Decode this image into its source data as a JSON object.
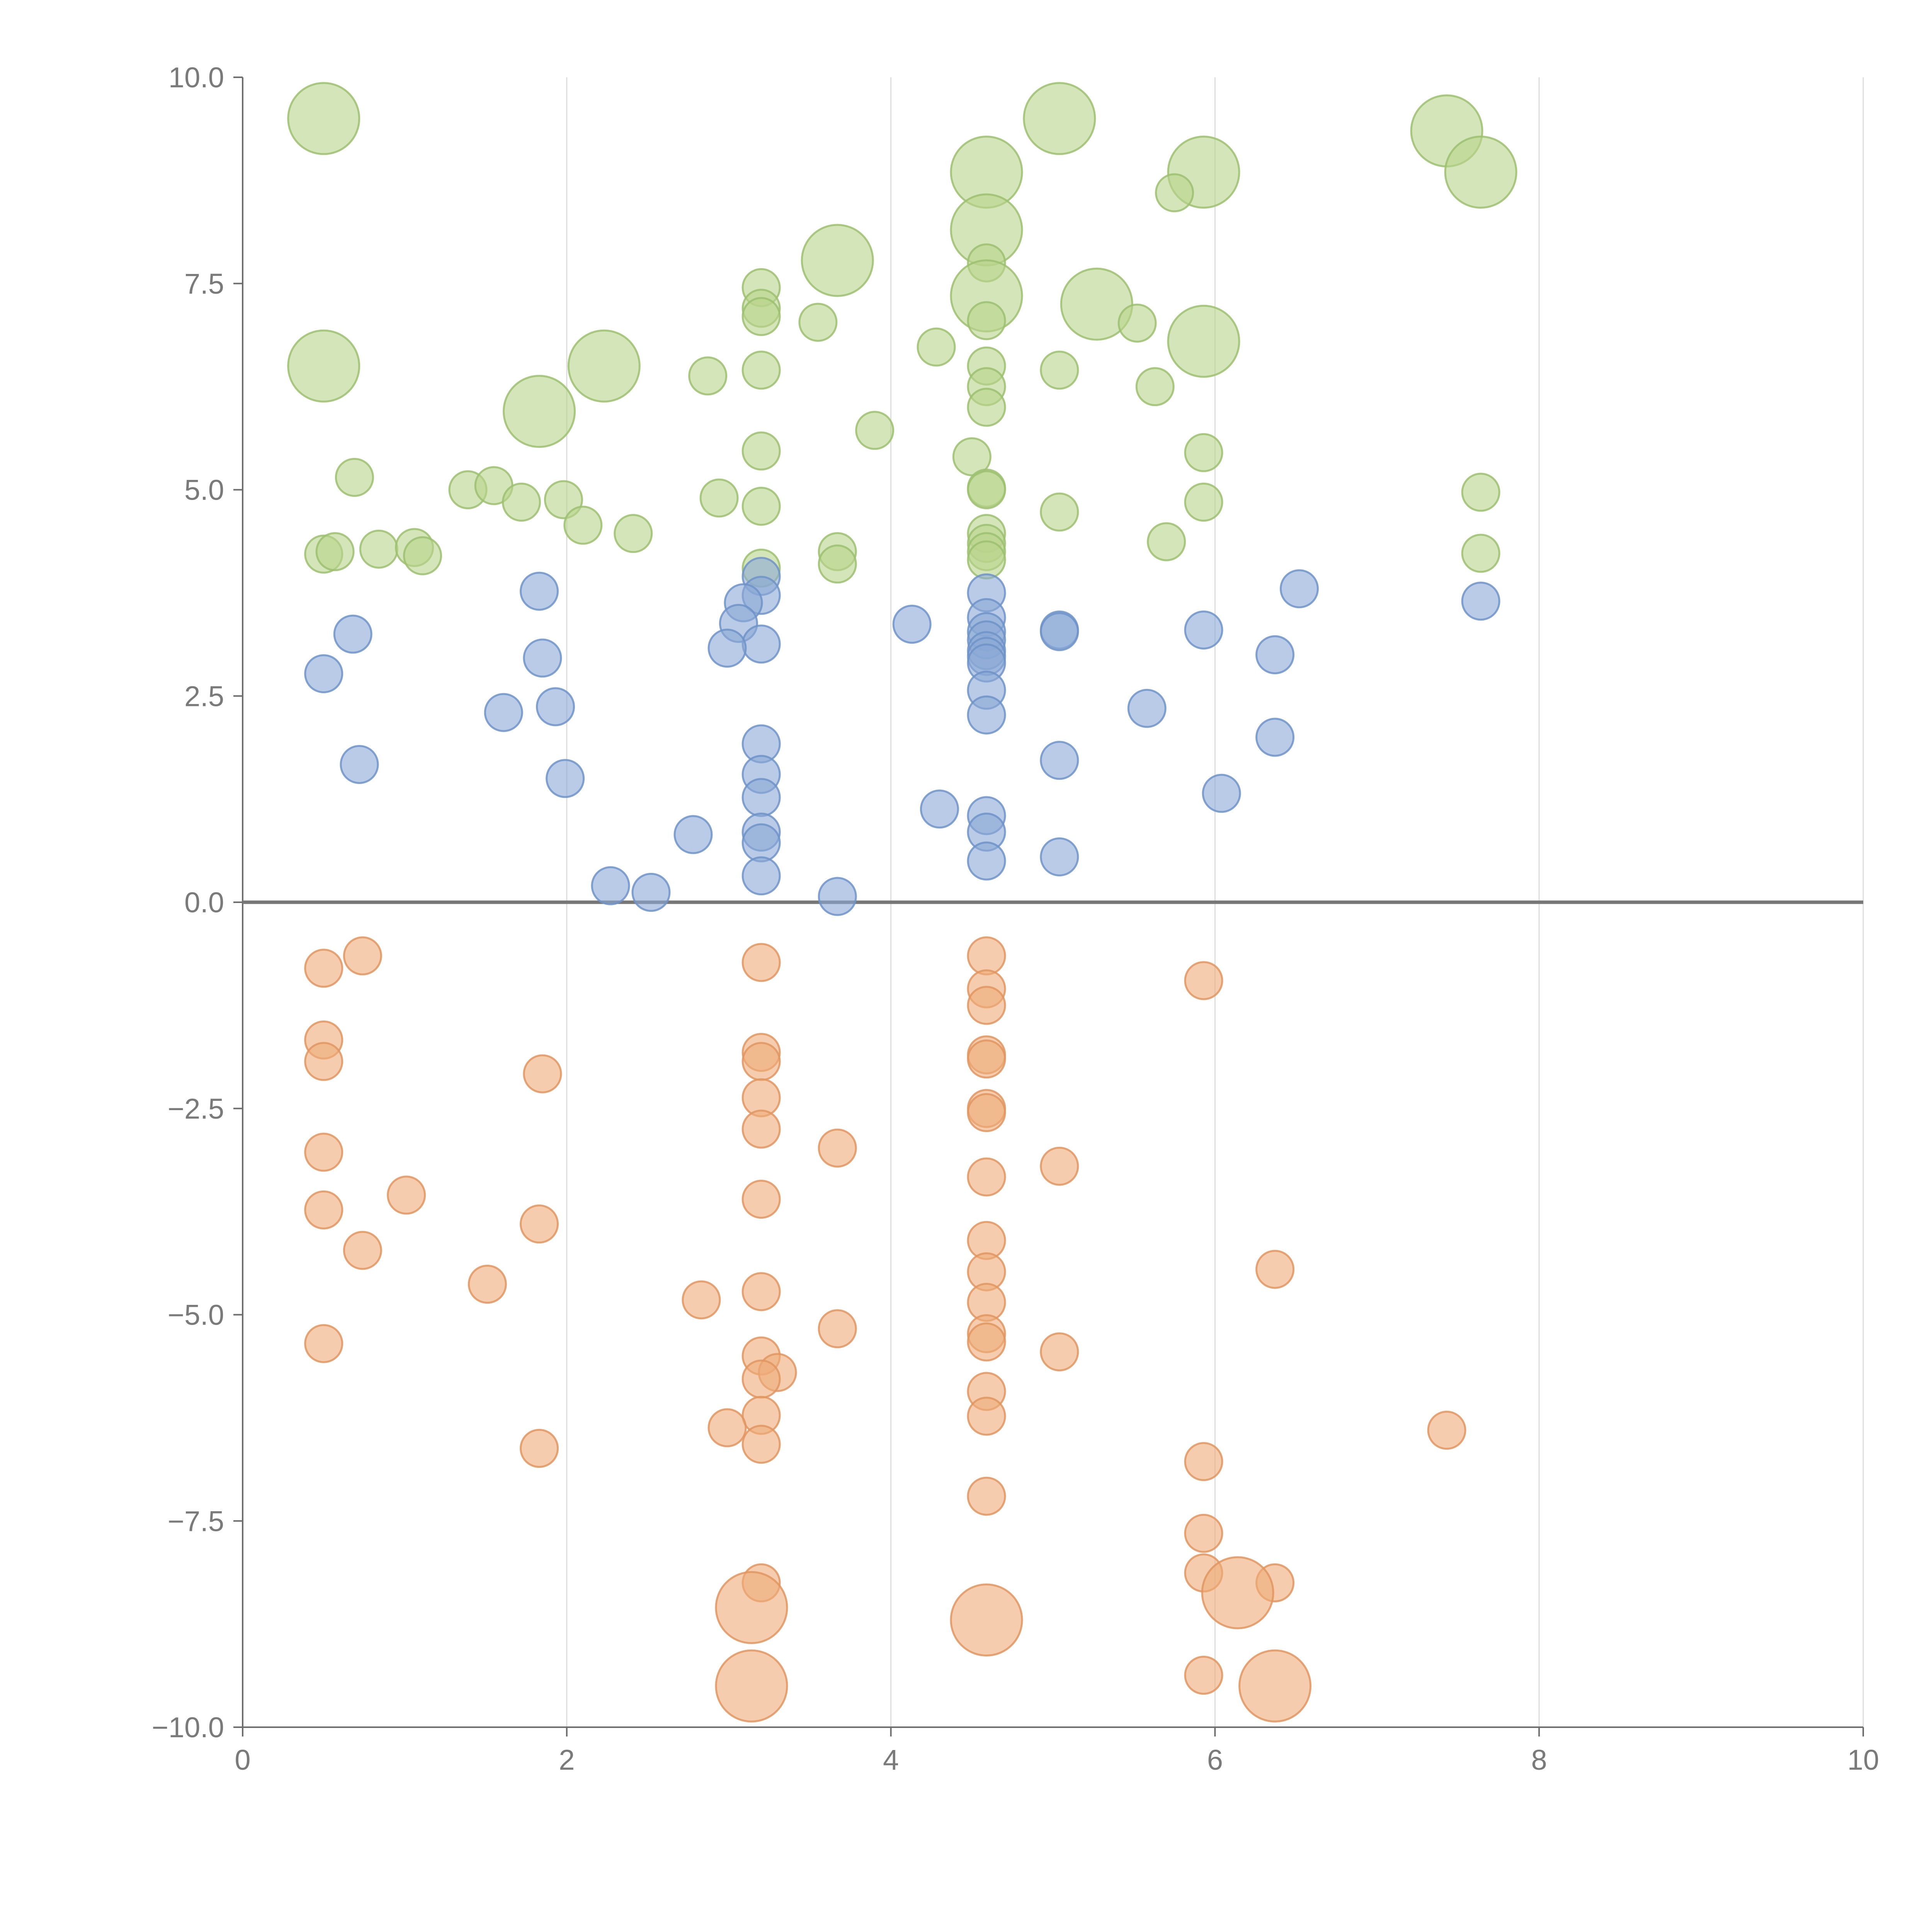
{
  "chart_data": {
    "type": "scatter",
    "title": "",
    "xlabel": "",
    "ylabel": "",
    "xlim": [
      0,
      10
    ],
    "ylim": [
      -10,
      10
    ],
    "x_ticks": [
      "0",
      "2",
      "4",
      "6",
      "8",
      "10"
    ],
    "y_ticks": [
      "10.0",
      "7.5",
      "5.0",
      "2.5",
      "0.0",
      "−2.5",
      "−5.0",
      "−7.5",
      "−10.0"
    ],
    "x_tick_values": [
      0,
      2,
      4,
      6,
      8,
      10
    ],
    "y_tick_values": [
      10,
      7.5,
      5,
      2.5,
      0,
      -2.5,
      -5,
      -7.5,
      -10
    ],
    "vertical_grid": true,
    "zero_line": true,
    "colors": {
      "green_fill": "#b9d38c",
      "green_stroke": "#9cc070",
      "blue_fill": "#8aa9d6",
      "blue_stroke": "#6e93c8",
      "orange_fill": "#eeab78",
      "orange_stroke": "#e09560",
      "axis": "#6f6f6f",
      "grid": "#dddddd",
      "tick_text": "#7a7a7a"
    },
    "series": [
      {
        "name": "green",
        "color": "green",
        "points": [
          {
            "x": 0.5,
            "y": 9.5,
            "size": "large"
          },
          {
            "x": 5.04,
            "y": 9.5,
            "size": "large"
          },
          {
            "x": 7.43,
            "y": 9.35,
            "size": "large"
          },
          {
            "x": 4.59,
            "y": 8.85,
            "size": "large"
          },
          {
            "x": 5.93,
            "y": 8.85,
            "size": "large"
          },
          {
            "x": 7.64,
            "y": 8.85,
            "size": "large"
          },
          {
            "x": 5.75,
            "y": 8.6,
            "size": "small"
          },
          {
            "x": 4.59,
            "y": 8.15,
            "size": "large"
          },
          {
            "x": 3.67,
            "y": 7.78,
            "size": "large"
          },
          {
            "x": 4.59,
            "y": 7.75,
            "size": "small"
          },
          {
            "x": 4.59,
            "y": 7.35,
            "size": "large"
          },
          {
            "x": 5.27,
            "y": 7.25,
            "size": "large"
          },
          {
            "x": 3.2,
            "y": 7.45,
            "size": "small"
          },
          {
            "x": 3.2,
            "y": 7.2,
            "size": "small"
          },
          {
            "x": 3.2,
            "y": 7.1,
            "size": "small"
          },
          {
            "x": 3.55,
            "y": 7.03,
            "size": "small"
          },
          {
            "x": 4.59,
            "y": 7.05,
            "size": "small"
          },
          {
            "x": 5.52,
            "y": 7.02,
            "size": "small"
          },
          {
            "x": 5.93,
            "y": 6.8,
            "size": "large"
          },
          {
            "x": 4.28,
            "y": 6.73,
            "size": "small"
          },
          {
            "x": 0.5,
            "y": 6.5,
            "size": "large"
          },
          {
            "x": 2.23,
            "y": 6.5,
            "size": "large"
          },
          {
            "x": 3.2,
            "y": 6.45,
            "size": "small"
          },
          {
            "x": 4.59,
            "y": 6.5,
            "size": "small"
          },
          {
            "x": 5.04,
            "y": 6.45,
            "size": "small"
          },
          {
            "x": 2.87,
            "y": 6.38,
            "size": "small"
          },
          {
            "x": 4.59,
            "y": 6.25,
            "size": "small"
          },
          {
            "x": 5.63,
            "y": 6.25,
            "size": "small"
          },
          {
            "x": 1.83,
            "y": 5.95,
            "size": "large"
          },
          {
            "x": 4.59,
            "y": 6.0,
            "size": "small"
          },
          {
            "x": 3.9,
            "y": 5.72,
            "size": "small"
          },
          {
            "x": 3.2,
            "y": 5.47,
            "size": "small"
          },
          {
            "x": 4.5,
            "y": 5.4,
            "size": "small"
          },
          {
            "x": 5.93,
            "y": 5.45,
            "size": "small"
          },
          {
            "x": 0.69,
            "y": 5.15,
            "size": "small"
          },
          {
            "x": 1.39,
            "y": 5.0,
            "size": "small"
          },
          {
            "x": 1.55,
            "y": 5.05,
            "size": "small"
          },
          {
            "x": 4.59,
            "y": 5.02,
            "size": "small"
          },
          {
            "x": 4.59,
            "y": 5.0,
            "size": "small"
          },
          {
            "x": 7.64,
            "y": 4.97,
            "size": "small"
          },
          {
            "x": 1.72,
            "y": 4.85,
            "size": "small"
          },
          {
            "x": 1.98,
            "y": 4.88,
            "size": "small"
          },
          {
            "x": 2.94,
            "y": 4.9,
            "size": "small"
          },
          {
            "x": 3.2,
            "y": 4.8,
            "size": "small"
          },
          {
            "x": 5.93,
            "y": 4.85,
            "size": "small"
          },
          {
            "x": 5.04,
            "y": 4.73,
            "size": "small"
          },
          {
            "x": 2.1,
            "y": 4.57,
            "size": "small"
          },
          {
            "x": 2.41,
            "y": 4.47,
            "size": "small"
          },
          {
            "x": 4.59,
            "y": 4.47,
            "size": "small"
          },
          {
            "x": 4.59,
            "y": 4.35,
            "size": "small"
          },
          {
            "x": 5.7,
            "y": 4.37,
            "size": "small"
          },
          {
            "x": 0.5,
            "y": 4.22,
            "size": "small"
          },
          {
            "x": 0.57,
            "y": 4.25,
            "size": "small"
          },
          {
            "x": 0.84,
            "y": 4.28,
            "size": "small"
          },
          {
            "x": 1.06,
            "y": 4.3,
            "size": "small"
          },
          {
            "x": 1.11,
            "y": 4.2,
            "size": "small"
          },
          {
            "x": 3.67,
            "y": 4.25,
            "size": "small"
          },
          {
            "x": 3.67,
            "y": 4.1,
            "size": "small"
          },
          {
            "x": 4.59,
            "y": 4.25,
            "size": "small"
          },
          {
            "x": 7.64,
            "y": 4.23,
            "size": "small"
          },
          {
            "x": 3.2,
            "y": 4.05,
            "size": "small"
          },
          {
            "x": 4.59,
            "y": 4.15,
            "size": "small"
          }
        ]
      },
      {
        "name": "blue",
        "color": "blue",
        "points": [
          {
            "x": 3.2,
            "y": 3.95,
            "size": "small"
          },
          {
            "x": 1.83,
            "y": 3.77,
            "size": "small"
          },
          {
            "x": 6.52,
            "y": 3.8,
            "size": "small"
          },
          {
            "x": 3.2,
            "y": 3.72,
            "size": "small"
          },
          {
            "x": 4.59,
            "y": 3.75,
            "size": "small"
          },
          {
            "x": 7.64,
            "y": 3.65,
            "size": "small"
          },
          {
            "x": 3.09,
            "y": 3.63,
            "size": "small"
          },
          {
            "x": 4.59,
            "y": 3.45,
            "size": "small"
          },
          {
            "x": 3.06,
            "y": 3.38,
            "size": "small"
          },
          {
            "x": 4.13,
            "y": 3.37,
            "size": "small"
          },
          {
            "x": 5.04,
            "y": 3.3,
            "size": "small"
          },
          {
            "x": 5.04,
            "y": 3.28,
            "size": "small"
          },
          {
            "x": 5.93,
            "y": 3.3,
            "size": "small"
          },
          {
            "x": 0.68,
            "y": 3.25,
            "size": "small"
          },
          {
            "x": 4.59,
            "y": 3.28,
            "size": "small"
          },
          {
            "x": 4.59,
            "y": 3.18,
            "size": "small"
          },
          {
            "x": 3.2,
            "y": 3.13,
            "size": "small"
          },
          {
            "x": 2.99,
            "y": 3.08,
            "size": "small"
          },
          {
            "x": 4.59,
            "y": 3.05,
            "size": "small"
          },
          {
            "x": 6.37,
            "y": 3.0,
            "size": "small"
          },
          {
            "x": 4.59,
            "y": 2.98,
            "size": "small"
          },
          {
            "x": 1.85,
            "y": 2.96,
            "size": "small"
          },
          {
            "x": 4.59,
            "y": 2.9,
            "size": "small"
          },
          {
            "x": 0.5,
            "y": 2.77,
            "size": "small"
          },
          {
            "x": 4.59,
            "y": 2.57,
            "size": "small"
          },
          {
            "x": 1.93,
            "y": 2.37,
            "size": "small"
          },
          {
            "x": 5.58,
            "y": 2.35,
            "size": "small"
          },
          {
            "x": 1.61,
            "y": 2.3,
            "size": "small"
          },
          {
            "x": 4.59,
            "y": 2.27,
            "size": "small"
          },
          {
            "x": 6.37,
            "y": 2.0,
            "size": "small"
          },
          {
            "x": 3.2,
            "y": 1.92,
            "size": "small"
          },
          {
            "x": 5.04,
            "y": 1.72,
            "size": "small"
          },
          {
            "x": 0.72,
            "y": 1.67,
            "size": "small"
          },
          {
            "x": 3.2,
            "y": 1.55,
            "size": "small"
          },
          {
            "x": 1.99,
            "y": 1.5,
            "size": "small"
          },
          {
            "x": 6.04,
            "y": 1.32,
            "size": "small"
          },
          {
            "x": 3.2,
            "y": 1.27,
            "size": "small"
          },
          {
            "x": 4.3,
            "y": 1.13,
            "size": "small"
          },
          {
            "x": 4.59,
            "y": 1.05,
            "size": "small"
          },
          {
            "x": 3.2,
            "y": 0.85,
            "size": "small"
          },
          {
            "x": 4.59,
            "y": 0.85,
            "size": "small"
          },
          {
            "x": 2.78,
            "y": 0.82,
            "size": "small"
          },
          {
            "x": 3.2,
            "y": 0.72,
            "size": "small"
          },
          {
            "x": 4.59,
            "y": 0.5,
            "size": "small"
          },
          {
            "x": 5.04,
            "y": 0.55,
            "size": "small"
          },
          {
            "x": 3.2,
            "y": 0.32,
            "size": "small"
          },
          {
            "x": 2.27,
            "y": 0.2,
            "size": "small"
          },
          {
            "x": 2.52,
            "y": 0.12,
            "size": "small"
          },
          {
            "x": 3.67,
            "y": 0.07,
            "size": "small"
          }
        ]
      },
      {
        "name": "orange",
        "color": "orange",
        "points": [
          {
            "x": 0.74,
            "y": -0.65,
            "size": "small"
          },
          {
            "x": 4.59,
            "y": -0.65,
            "size": "small"
          },
          {
            "x": 3.2,
            "y": -0.73,
            "size": "small"
          },
          {
            "x": 0.5,
            "y": -0.8,
            "size": "small"
          },
          {
            "x": 5.93,
            "y": -0.95,
            "size": "small"
          },
          {
            "x": 4.59,
            "y": -1.05,
            "size": "small"
          },
          {
            "x": 4.59,
            "y": -1.25,
            "size": "small"
          },
          {
            "x": 0.5,
            "y": -1.67,
            "size": "small"
          },
          {
            "x": 3.2,
            "y": -1.82,
            "size": "small"
          },
          {
            "x": 4.59,
            "y": -1.85,
            "size": "small"
          },
          {
            "x": 4.59,
            "y": -1.9,
            "size": "small"
          },
          {
            "x": 0.5,
            "y": -1.93,
            "size": "small"
          },
          {
            "x": 3.2,
            "y": -1.93,
            "size": "small"
          },
          {
            "x": 1.85,
            "y": -2.08,
            "size": "small"
          },
          {
            "x": 3.2,
            "y": -2.37,
            "size": "small"
          },
          {
            "x": 4.59,
            "y": -2.5,
            "size": "small"
          },
          {
            "x": 4.59,
            "y": -2.55,
            "size": "small"
          },
          {
            "x": 3.2,
            "y": -2.75,
            "size": "small"
          },
          {
            "x": 3.67,
            "y": -2.98,
            "size": "small"
          },
          {
            "x": 0.5,
            "y": -3.03,
            "size": "small"
          },
          {
            "x": 5.04,
            "y": -3.2,
            "size": "small"
          },
          {
            "x": 4.59,
            "y": -3.33,
            "size": "small"
          },
          {
            "x": 1.01,
            "y": -3.55,
            "size": "small"
          },
          {
            "x": 3.2,
            "y": -3.6,
            "size": "small"
          },
          {
            "x": 0.5,
            "y": -3.73,
            "size": "small"
          },
          {
            "x": 1.83,
            "y": -3.9,
            "size": "small"
          },
          {
            "x": 4.59,
            "y": -4.1,
            "size": "small"
          },
          {
            "x": 0.74,
            "y": -4.22,
            "size": "small"
          },
          {
            "x": 4.59,
            "y": -4.48,
            "size": "small"
          },
          {
            "x": 6.37,
            "y": -4.45,
            "size": "small"
          },
          {
            "x": 1.51,
            "y": -4.63,
            "size": "small"
          },
          {
            "x": 3.2,
            "y": -4.72,
            "size": "small"
          },
          {
            "x": 2.83,
            "y": -4.82,
            "size": "small"
          },
          {
            "x": 4.59,
            "y": -4.85,
            "size": "small"
          },
          {
            "x": 3.67,
            "y": -5.17,
            "size": "small"
          },
          {
            "x": 4.59,
            "y": -5.23,
            "size": "small"
          },
          {
            "x": 0.5,
            "y": -5.35,
            "size": "small"
          },
          {
            "x": 4.59,
            "y": -5.33,
            "size": "small"
          },
          {
            "x": 5.04,
            "y": -5.45,
            "size": "small"
          },
          {
            "x": 3.2,
            "y": -5.5,
            "size": "small"
          },
          {
            "x": 3.3,
            "y": -5.7,
            "size": "small"
          },
          {
            "x": 3.2,
            "y": -5.78,
            "size": "small"
          },
          {
            "x": 4.59,
            "y": -5.93,
            "size": "small"
          },
          {
            "x": 3.2,
            "y": -6.22,
            "size": "small"
          },
          {
            "x": 4.59,
            "y": -6.23,
            "size": "small"
          },
          {
            "x": 2.99,
            "y": -6.37,
            "size": "small"
          },
          {
            "x": 7.43,
            "y": -6.4,
            "size": "small"
          },
          {
            "x": 3.2,
            "y": -6.57,
            "size": "small"
          },
          {
            "x": 1.83,
            "y": -6.62,
            "size": "small"
          },
          {
            "x": 5.93,
            "y": -6.78,
            "size": "small"
          },
          {
            "x": 4.59,
            "y": -7.2,
            "size": "small"
          },
          {
            "x": 5.93,
            "y": -7.65,
            "size": "small"
          },
          {
            "x": 5.93,
            "y": -8.13,
            "size": "small"
          },
          {
            "x": 3.2,
            "y": -8.25,
            "size": "small"
          },
          {
            "x": 6.37,
            "y": -8.25,
            "size": "small"
          },
          {
            "x": 6.14,
            "y": -8.37,
            "size": "large"
          },
          {
            "x": 3.14,
            "y": -8.55,
            "size": "large"
          },
          {
            "x": 4.59,
            "y": -8.7,
            "size": "large"
          },
          {
            "x": 5.93,
            "y": -9.37,
            "size": "small"
          },
          {
            "x": 3.14,
            "y": -9.5,
            "size": "large"
          },
          {
            "x": 6.37,
            "y": -9.5,
            "size": "large"
          }
        ]
      }
    ]
  }
}
